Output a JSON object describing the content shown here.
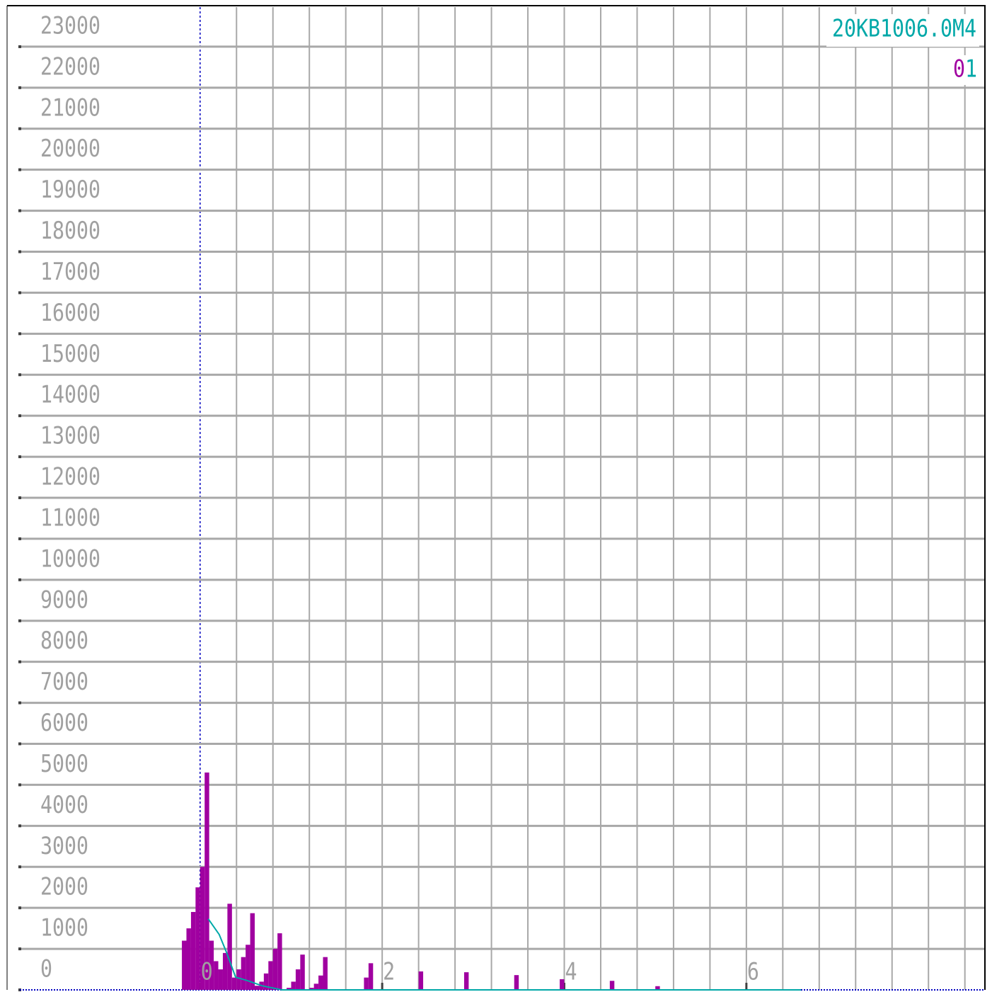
{
  "chart_data": {
    "type": "histogram",
    "title": "20KB1006.0M4",
    "xlim": [
      -2.12,
      8.62
    ],
    "ylim": [
      0,
      24000
    ],
    "xticks": [
      0,
      2,
      4,
      6
    ],
    "xgrid": [
      0,
      0.4,
      0.8,
      1.2,
      1.6,
      2,
      2.4,
      2.8,
      3.2,
      3.6,
      4,
      4.4,
      4.8,
      5.2,
      5.6,
      6,
      6.4,
      6.8,
      7.2,
      7.6,
      8,
      8.4
    ],
    "yticks": [
      0,
      1000,
      2000,
      3000,
      4000,
      5000,
      6000,
      7000,
      8000,
      9000,
      10000,
      11000,
      12000,
      13000,
      14000,
      15000,
      16000,
      17000,
      18000,
      19000,
      20000,
      21000,
      22000,
      23000
    ],
    "grid": true,
    "series": [
      {
        "name": "0",
        "type": "histogram",
        "color": "#a000a0",
        "bins": [
          -0.2,
          -0.15,
          -0.1,
          -0.05,
          0,
          0.05,
          0.1,
          0.15,
          0.2,
          0.25,
          0.3,
          0.35,
          0.4,
          0.45,
          0.5,
          0.55,
          0.6,
          0.65,
          0.7,
          0.75,
          0.8,
          0.85,
          0.9,
          0.95,
          1,
          1.05,
          1.1,
          1.15,
          1.2,
          1.25,
          1.3,
          1.35,
          1.4,
          1.8,
          1.85,
          1.9,
          2.4,
          2.45,
          2.9,
          2.95,
          3.45,
          3.5,
          3.95,
          4,
          4.5,
          4.55,
          5.0,
          5.05
        ],
        "values": [
          1200,
          1500,
          1900,
          2500,
          3000,
          5300,
          1200,
          700,
          500,
          900,
          2100,
          300,
          500,
          800,
          1100,
          1870,
          100,
          200,
          400,
          700,
          1000,
          1380,
          0,
          50,
          200,
          500,
          860,
          0,
          50,
          150,
          350,
          800,
          0,
          300,
          650,
          0,
          450,
          0,
          430,
          0,
          360,
          0,
          260,
          0,
          220,
          0,
          90
        ]
      },
      {
        "name": "1",
        "type": "line",
        "color": "#00a8a8",
        "x": [
          0.09,
          0.21,
          0.29,
          0.39,
          0.52,
          0.68,
          0.9,
          6.6
        ],
        "values": [
          1730,
          1350,
          915,
          310,
          225,
          100,
          0,
          0
        ]
      }
    ]
  }
}
